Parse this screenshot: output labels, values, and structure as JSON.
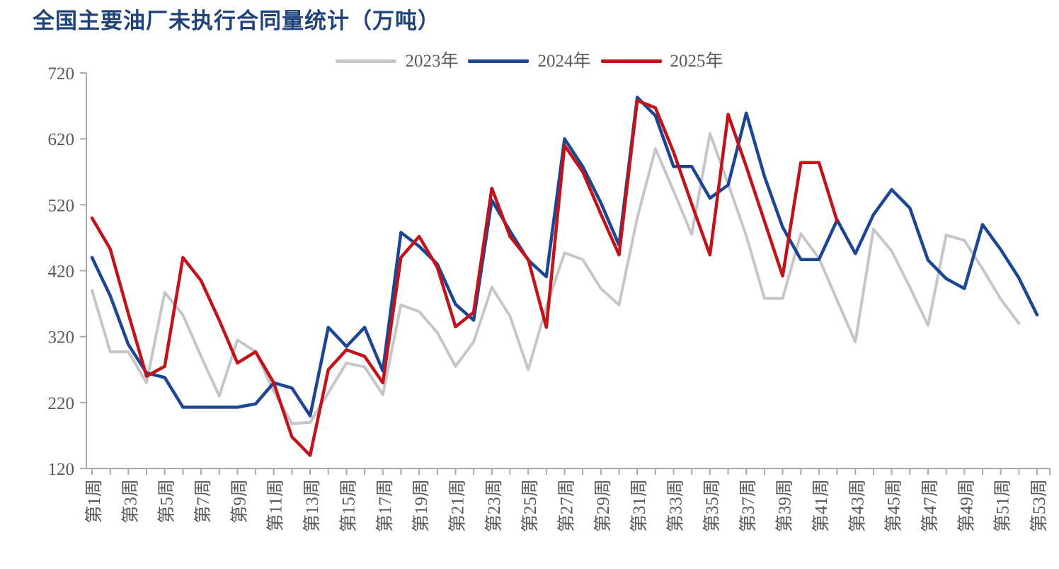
{
  "title": "全国主要油厂未执行合同量统计（万吨）",
  "title_color": "#1E4279",
  "chart_data": {
    "type": "line",
    "title": "全国主要油厂未执行合同量统计（万吨）",
    "xlabel": "",
    "ylabel": "",
    "ylim": [
      120,
      720
    ],
    "y_ticks": [
      720,
      620,
      520,
      420,
      320,
      220,
      120
    ],
    "x_weeks_total": 53,
    "x_tick_labels": [
      "第1周",
      "第3周",
      "第5周",
      "第7周",
      "第9周",
      "第11周",
      "第13周",
      "第15周",
      "第17周",
      "第19周",
      "第21周",
      "第23周",
      "第25周",
      "第27周",
      "第29周",
      "第31周",
      "第33周",
      "第35周",
      "第37周",
      "第39周",
      "第41周",
      "第43周",
      "第45周",
      "第47周",
      "第49周",
      "第51周",
      "第53周"
    ],
    "grid": false,
    "legend_position": "top-center",
    "axis_color": "#A9A9A9",
    "tick_label_color": "#595959",
    "series": [
      {
        "name": "2023年",
        "color": "#C6C6CA",
        "start_week": 1,
        "values": [
          390,
          297,
          297,
          250,
          387,
          353,
          290,
          230,
          315,
          297,
          237,
          188,
          190,
          235,
          280,
          274,
          232,
          368,
          358,
          326,
          275,
          312,
          395,
          351,
          270,
          365,
          447,
          437,
          393,
          368,
          500,
          605,
          541,
          475,
          628,
          552,
          473,
          378,
          378,
          476,
          439,
          375,
          312,
          483,
          450,
          395,
          337,
          474,
          466,
          423,
          377,
          340
        ]
      },
      {
        "name": "2024年",
        "color": "#1C4693",
        "start_week": 1,
        "values": [
          440,
          382,
          308,
          265,
          258,
          213,
          213,
          213,
          213,
          218,
          250,
          242,
          200,
          334,
          305,
          334,
          268,
          478,
          457,
          430,
          369,
          345,
          527,
          480,
          436,
          411,
          620,
          578,
          523,
          459,
          683,
          655,
          578,
          578,
          530,
          550,
          659,
          563,
          486,
          437,
          437,
          497,
          446,
          505,
          543,
          515,
          436,
          408,
          393,
          490,
          452,
          409,
          353
        ]
      },
      {
        "name": "2025年",
        "color": "#C2121A",
        "start_week": 1,
        "values": [
          500,
          453,
          355,
          260,
          275,
          440,
          405,
          345,
          280,
          297,
          250,
          168,
          140,
          270,
          300,
          290,
          250,
          440,
          472,
          425,
          335,
          357,
          545,
          472,
          437,
          334,
          610,
          570,
          506,
          444,
          678,
          667,
          600,
          521,
          444,
          657,
          578,
          495,
          412,
          584,
          584,
          495
        ]
      }
    ]
  }
}
